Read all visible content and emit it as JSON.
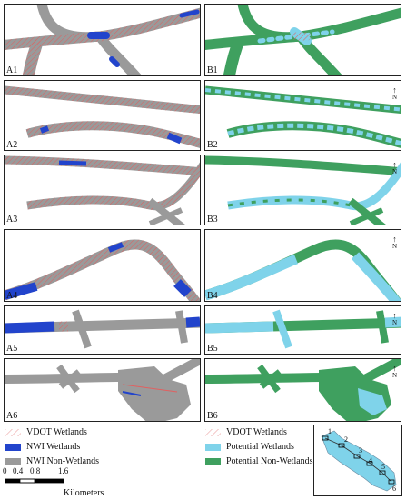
{
  "panels_left": [
    "A1",
    "A2",
    "A3",
    "A4",
    "A5",
    "A6"
  ],
  "panels_right": [
    "B1",
    "B2",
    "B3",
    "B4",
    "B5",
    "B6"
  ],
  "north_label": "N",
  "legend_left": [
    {
      "label": "VDOT Wetlands",
      "swatch": "hatch-red"
    },
    {
      "label": "NWI Wetlands",
      "swatch": "#2244cc"
    },
    {
      "label": "NWI Non-Wetlands",
      "swatch": "#9a9a9a"
    }
  ],
  "legend_right": [
    {
      "label": "VDOT Wetlands",
      "swatch": "hatch-red"
    },
    {
      "label": "Potential Wetlands",
      "swatch": "#7fd3ea"
    },
    {
      "label": "Potential Non-Wetlands",
      "swatch": "#3fa05f"
    }
  ],
  "scale": {
    "ticks": [
      "0",
      "0.4",
      "0.8",
      "1.6"
    ],
    "units": "Kilometers"
  },
  "inset_numbers": [
    "1",
    "2",
    "3",
    "4",
    "5",
    "6"
  ],
  "colors": {
    "nwi_nonwet": "#9a9a9a",
    "nwi_wet": "#2244cc",
    "pot_wet": "#7fd3ea",
    "pot_nonwet": "#3fa05f",
    "vdot": "#e06060"
  }
}
